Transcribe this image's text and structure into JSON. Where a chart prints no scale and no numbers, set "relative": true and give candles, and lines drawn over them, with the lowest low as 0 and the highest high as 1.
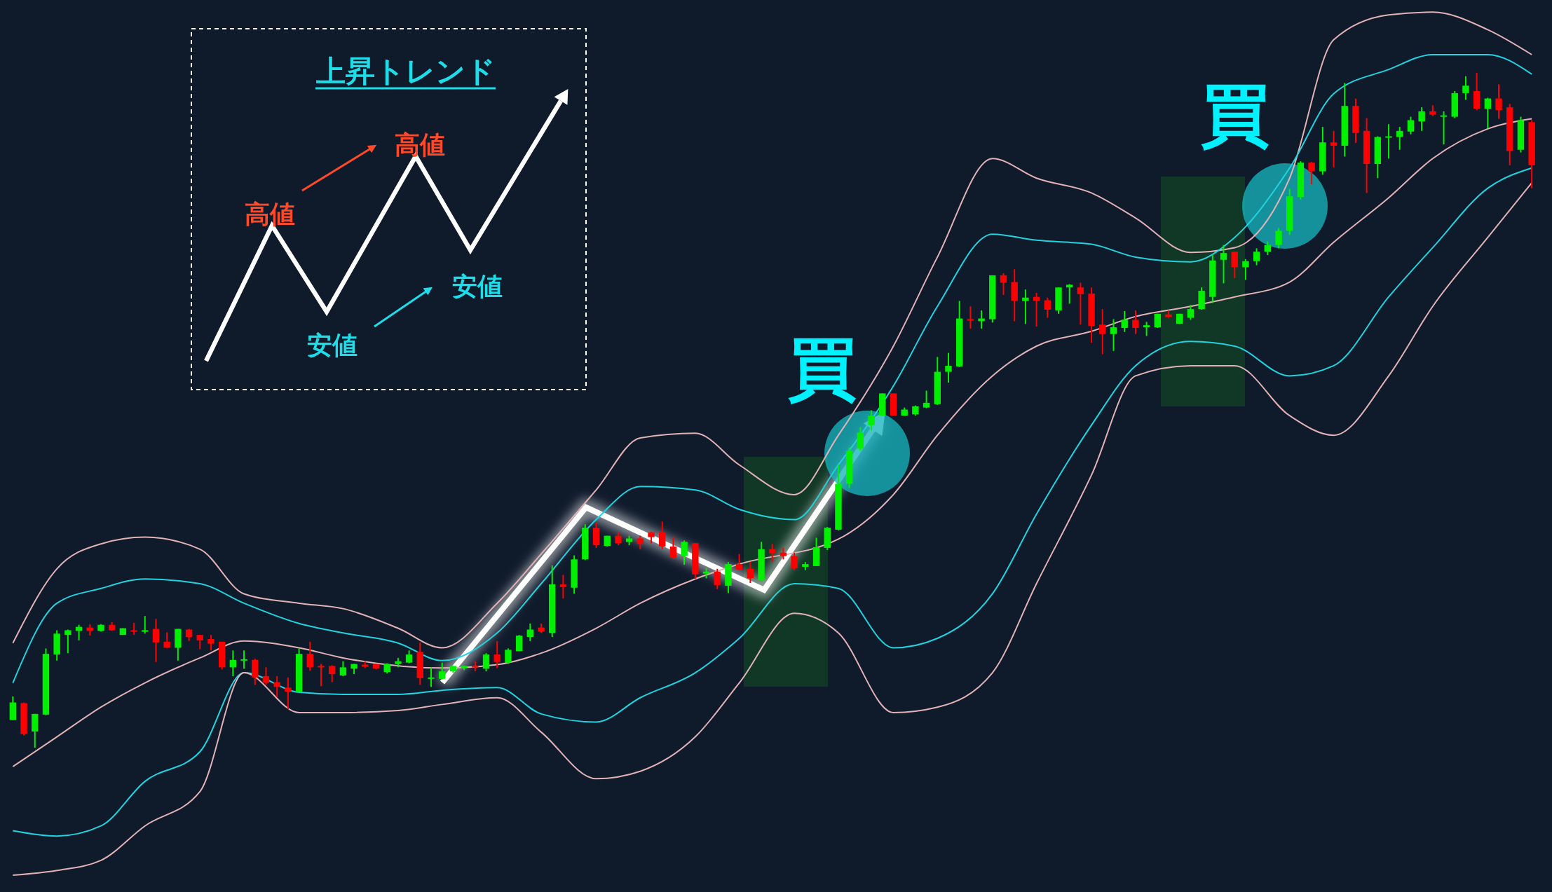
{
  "chart_data": {
    "type": "candlestick",
    "relative": true,
    "categories": [
      null,
      null,
      null,
      null,
      null,
      null,
      null,
      null,
      null,
      null,
      null,
      null,
      null,
      null,
      null,
      null,
      null,
      null,
      null,
      null,
      null,
      null,
      null,
      null,
      null,
      null,
      null,
      null,
      null,
      null,
      null,
      null,
      null,
      null,
      null,
      null,
      null,
      null,
      null,
      null,
      null,
      null,
      null,
      null,
      null,
      null,
      null,
      null,
      null,
      null,
      null,
      null,
      null,
      null,
      null,
      null,
      null,
      null,
      null,
      null,
      null,
      null,
      null,
      null,
      null,
      null,
      null,
      null,
      null,
      null,
      null,
      null,
      null,
      null,
      null,
      null,
      null,
      null,
      null,
      null,
      null,
      null,
      null,
      null,
      null,
      null,
      null,
      null,
      null,
      null,
      null,
      null,
      null,
      null,
      null,
      null,
      null,
      null,
      null,
      null,
      null,
      null,
      null,
      null,
      null,
      null,
      null,
      null,
      null,
      null,
      null,
      null,
      null,
      null,
      null,
      null,
      null,
      null,
      null,
      null,
      null,
      null,
      null,
      null,
      null,
      null,
      null,
      null,
      null,
      null,
      null,
      null,
      null,
      null,
      null,
      null,
      null,
      null,
      null
    ],
    "ohlc": [
      [
        0.041,
        0.076,
        0.041,
        0.067
      ],
      [
        0.066,
        0.067,
        0.018,
        0.02
      ],
      [
        0.024,
        0.05,
        0.0,
        0.05
      ],
      [
        0.049,
        0.147,
        0.048,
        0.139
      ],
      [
        0.138,
        0.174,
        0.129,
        0.169
      ],
      [
        0.167,
        0.175,
        0.14,
        0.174
      ],
      [
        0.173,
        0.182,
        0.159,
        0.179
      ],
      [
        0.178,
        0.183,
        0.166,
        0.173
      ],
      [
        0.173,
        0.183,
        0.172,
        0.182
      ],
      [
        0.182,
        0.186,
        0.173,
        0.174
      ],
      [
        0.167,
        0.177,
        0.167,
        0.177
      ],
      [
        0.174,
        0.185,
        0.167,
        0.172
      ],
      [
        0.172,
        0.195,
        0.169,
        0.174
      ],
      [
        0.176,
        0.191,
        0.127,
        0.156
      ],
      [
        0.157,
        0.171,
        0.148,
        0.148
      ],
      [
        0.148,
        0.176,
        0.129,
        0.176
      ],
      [
        0.175,
        0.176,
        0.158,
        0.164
      ],
      [
        0.167,
        0.167,
        0.146,
        0.159
      ],
      [
        0.161,
        0.167,
        0.144,
        0.154
      ],
      [
        0.157,
        0.157,
        0.116,
        0.119
      ],
      [
        0.119,
        0.144,
        0.106,
        0.13
      ],
      [
        0.13,
        0.144,
        0.117,
        0.131
      ],
      [
        0.13,
        0.132,
        0.093,
        0.104
      ],
      [
        0.106,
        0.119,
        0.093,
        0.096
      ],
      [
        0.097,
        0.106,
        0.075,
        0.09
      ],
      [
        0.089,
        0.104,
        0.057,
        0.083
      ],
      [
        0.082,
        0.147,
        0.082,
        0.139
      ],
      [
        0.139,
        0.157,
        0.114,
        0.119
      ],
      [
        0.121,
        0.124,
        0.091,
        0.12
      ],
      [
        0.121,
        0.122,
        0.097,
        0.109
      ],
      [
        0.107,
        0.128,
        0.106,
        0.119
      ],
      [
        0.117,
        0.124,
        0.109,
        0.124
      ],
      [
        0.123,
        0.128,
        0.118,
        0.12
      ],
      [
        0.124,
        0.124,
        0.116,
        0.117
      ],
      [
        0.112,
        0.125,
        0.11,
        0.124
      ],
      [
        0.124,
        0.133,
        0.119,
        0.128
      ],
      [
        0.126,
        0.144,
        0.125,
        0.138
      ],
      [
        0.142,
        0.156,
        0.093,
        0.103
      ],
      [
        0.102,
        0.119,
        0.09,
        0.104
      ],
      [
        0.102,
        0.126,
        0.101,
        0.113
      ],
      [
        0.113,
        0.121,
        0.111,
        0.121
      ],
      [
        0.118,
        0.121,
        0.115,
        0.121
      ],
      [
        0.121,
        0.128,
        0.113,
        0.119
      ],
      [
        0.117,
        0.14,
        0.113,
        0.138
      ],
      [
        0.138,
        0.158,
        0.118,
        0.127
      ],
      [
        0.126,
        0.147,
        0.124,
        0.145
      ],
      [
        0.143,
        0.167,
        0.143,
        0.166
      ],
      [
        0.164,
        0.184,
        0.158,
        0.175
      ],
      [
        0.178,
        0.184,
        0.17,
        0.172
      ],
      [
        0.17,
        0.27,
        0.164,
        0.242
      ],
      [
        0.242,
        0.256,
        0.221,
        0.238
      ],
      [
        0.237,
        0.285,
        0.228,
        0.279
      ],
      [
        0.279,
        0.331,
        0.278,
        0.326
      ],
      [
        0.326,
        0.334,
        0.296,
        0.3
      ],
      [
        0.299,
        0.314,
        0.298,
        0.314
      ],
      [
        0.314,
        0.319,
        0.3,
        0.303
      ],
      [
        0.305,
        0.314,
        0.3,
        0.31
      ],
      [
        0.31,
        0.314,
        0.294,
        0.302
      ],
      [
        0.319,
        0.32,
        0.303,
        0.312
      ],
      [
        0.319,
        0.335,
        0.294,
        0.298
      ],
      [
        0.298,
        0.312,
        0.28,
        0.282
      ],
      [
        0.284,
        0.307,
        0.271,
        0.305
      ],
      [
        0.303,
        0.303,
        0.25,
        0.257
      ],
      [
        0.258,
        0.266,
        0.251,
        0.261
      ],
      [
        0.261,
        0.265,
        0.235,
        0.241
      ],
      [
        0.24,
        0.275,
        0.229,
        0.272
      ],
      [
        0.272,
        0.287,
        0.263,
        0.264
      ],
      [
        0.265,
        0.275,
        0.244,
        0.251
      ],
      [
        0.248,
        0.305,
        0.247,
        0.294
      ],
      [
        0.294,
        0.302,
        0.275,
        0.288
      ],
      [
        0.289,
        0.296,
        0.279,
        0.284
      ],
      [
        0.284,
        0.289,
        0.263,
        0.266
      ],
      [
        0.268,
        0.275,
        0.263,
        0.272
      ],
      [
        0.269,
        0.311,
        0.269,
        0.297
      ],
      [
        0.296,
        0.327,
        0.293,
        0.326
      ],
      [
        0.323,
        0.419,
        0.322,
        0.391
      ],
      [
        0.391,
        0.445,
        0.385,
        0.44
      ],
      [
        0.443,
        0.475,
        0.44,
        0.467
      ],
      [
        0.478,
        0.5,
        0.47,
        0.492
      ],
      [
        0.492,
        0.525,
        0.492,
        0.525
      ],
      [
        0.525,
        0.525,
        0.492,
        0.492
      ],
      [
        0.492,
        0.504,
        0.492,
        0.501
      ],
      [
        0.494,
        0.507,
        0.492,
        0.506
      ],
      [
        0.504,
        0.529,
        0.503,
        0.511
      ],
      [
        0.509,
        0.579,
        0.508,
        0.557
      ],
      [
        0.557,
        0.585,
        0.541,
        0.566
      ],
      [
        0.565,
        0.662,
        0.564,
        0.636
      ],
      [
        0.635,
        0.654,
        0.621,
        0.634
      ],
      [
        0.632,
        0.648,
        0.621,
        0.636
      ],
      [
        0.635,
        0.7,
        0.63,
        0.7
      ],
      [
        0.7,
        0.703,
        0.671,
        0.689
      ],
      [
        0.69,
        0.709,
        0.632,
        0.662
      ],
      [
        0.662,
        0.679,
        0.628,
        0.667
      ],
      [
        0.668,
        0.674,
        0.624,
        0.662
      ],
      [
        0.663,
        0.667,
        0.637,
        0.649
      ],
      [
        0.648,
        0.682,
        0.643,
        0.682
      ],
      [
        0.682,
        0.687,
        0.658,
        0.686
      ],
      [
        0.682,
        0.689,
        0.627,
        0.672
      ],
      [
        0.673,
        0.682,
        0.6,
        0.625
      ],
      [
        0.627,
        0.65,
        0.583,
        0.613
      ],
      [
        0.613,
        0.635,
        0.588,
        0.623
      ],
      [
        0.622,
        0.647,
        0.616,
        0.634
      ],
      [
        0.634,
        0.648,
        0.613,
        0.622
      ],
      [
        0.623,
        0.631,
        0.61,
        0.626
      ],
      [
        0.623,
        0.643,
        0.622,
        0.643
      ],
      [
        0.642,
        0.648,
        0.637,
        0.638
      ],
      [
        0.628,
        0.643,
        0.628,
        0.643
      ],
      [
        0.637,
        0.656,
        0.634,
        0.65
      ],
      [
        0.65,
        0.682,
        0.649,
        0.677
      ],
      [
        0.668,
        0.731,
        0.659,
        0.722
      ],
      [
        0.723,
        0.745,
        0.688,
        0.733
      ],
      [
        0.735,
        0.735,
        0.696,
        0.712
      ],
      [
        0.712,
        0.724,
        0.693,
        0.721
      ],
      [
        0.721,
        0.74,
        0.715,
        0.735
      ],
      [
        0.735,
        0.75,
        0.73,
        0.745
      ],
      [
        0.745,
        0.77,
        0.74,
        0.766
      ],
      [
        0.766,
        0.828,
        0.76,
        0.817
      ],
      [
        0.816,
        0.869,
        0.812,
        0.867
      ],
      [
        0.867,
        0.868,
        0.835,
        0.854
      ],
      [
        0.854,
        0.92,
        0.849,
        0.897
      ],
      [
        0.897,
        0.914,
        0.86,
        0.892
      ],
      [
        0.892,
        0.985,
        0.876,
        0.951
      ],
      [
        0.951,
        0.962,
        0.896,
        0.911
      ],
      [
        0.914,
        0.933,
        0.822,
        0.865
      ],
      [
        0.865,
        0.906,
        0.844,
        0.905
      ],
      [
        0.905,
        0.924,
        0.873,
        0.906
      ],
      [
        0.905,
        0.92,
        0.886,
        0.914
      ],
      [
        0.913,
        0.935,
        0.909,
        0.93
      ],
      [
        0.928,
        0.949,
        0.914,
        0.943
      ],
      [
        0.943,
        0.952,
        0.936,
        0.938
      ],
      [
        0.936,
        0.943,
        0.894,
        0.937
      ],
      [
        0.935,
        0.973,
        0.933,
        0.97
      ],
      [
        0.97,
        0.995,
        0.96,
        0.981
      ],
      [
        0.973,
        1.0,
        0.945,
        0.947
      ],
      [
        0.947,
        0.963,
        0.918,
        0.962
      ],
      [
        0.962,
        0.983,
        0.932,
        0.945
      ],
      [
        0.949,
        0.954,
        0.863,
        0.884
      ],
      [
        0.886,
        0.935,
        0.882,
        0.93
      ],
      [
        0.927,
        0.93,
        0.829,
        0.863
      ]
    ],
    "series": [
      {
        "type": "line",
        "color": "#e2b3b6",
        "values": [
          0.155,
          null,
          null,
          null,
          0.265,
          null,
          null,
          null,
          0.302,
          null,
          null,
          null,
          0.312,
          null,
          null,
          null,
          null,
          0.294,
          null,
          null,
          null,
          0.228,
          null,
          null,
          null,
          null,
          0.214,
          null,
          null,
          null,
          0.206,
          null,
          null,
          null,
          null,
          0.177,
          null,
          null,
          null,
          0.148,
          null,
          null,
          null,
          null,
          0.214,
          null,
          null,
          null,
          0.287,
          null,
          null,
          null,
          null,
          0.382,
          null,
          null,
          null,
          0.459,
          null,
          null,
          null,
          null,
          0.466,
          null,
          null,
          null,
          0.419,
          null,
          null,
          null,
          null,
          0.375,
          null,
          null,
          null,
          0.463,
          null,
          null,
          null,
          null,
          0.595,
          null,
          null,
          null,
          0.727,
          null,
          null,
          null,
          null,
          0.873,
          null,
          null,
          null,
          0.844,
          null,
          null,
          null,
          null,
          0.822,
          null,
          null,
          null,
          0.785,
          null,
          null,
          null,
          null,
          0.734,
          null,
          null,
          null,
          0.741,
          null,
          null,
          null,
          null,
          0.844,
          null,
          null,
          null,
          1.049,
          null,
          null,
          null,
          null,
          1.086,
          null,
          null,
          null,
          1.09,
          null,
          null,
          null,
          null,
          1.064,
          null,
          null,
          null,
          1.027
        ]
      },
      {
        "type": "line",
        "color": "#22d3df",
        "values": [
          0.096,
          null,
          null,
          null,
          0.214,
          null,
          null,
          null,
          0.236,
          null,
          null,
          null,
          0.25,
          null,
          null,
          null,
          null,
          0.243,
          null,
          null,
          null,
          0.214,
          null,
          null,
          null,
          null,
          0.184,
          null,
          null,
          null,
          0.17,
          null,
          null,
          null,
          null,
          0.155,
          null,
          null,
          null,
          0.129,
          null,
          null,
          null,
          null,
          0.17,
          null,
          null,
          null,
          0.243,
          null,
          null,
          null,
          null,
          0.338,
          null,
          null,
          null,
          0.387,
          null,
          null,
          null,
          null,
          0.382,
          null,
          null,
          null,
          0.353,
          null,
          null,
          null,
          null,
          0.338,
          null,
          null,
          null,
          0.419,
          null,
          null,
          null,
          null,
          0.536,
          null,
          null,
          null,
          0.654,
          null,
          null,
          null,
          null,
          0.761,
          null,
          null,
          null,
          0.752,
          null,
          null,
          null,
          null,
          0.746,
          null,
          null,
          null,
          0.727,
          null,
          null,
          null,
          null,
          0.72,
          null,
          null,
          null,
          0.756,
          null,
          null,
          null,
          null,
          0.859,
          null,
          null,
          null,
          0.969,
          null,
          null,
          null,
          null,
          1.005,
          null,
          null,
          null,
          1.027,
          null,
          null,
          null,
          null,
          1.027,
          null,
          null,
          null,
          0.998
        ]
      },
      {
        "type": "line",
        "color": "#e2b3b6",
        "values": [
          -0.028,
          null,
          null,
          null,
          0.016,
          null,
          null,
          null,
          0.06,
          null,
          null,
          null,
          0.096,
          null,
          null,
          null,
          null,
          0.133,
          null,
          null,
          null,
          0.158,
          null,
          null,
          null,
          null,
          0.148,
          null,
          null,
          null,
          0.133,
          null,
          null,
          null,
          null,
          null,
          null,
          null,
          null,
          0.118,
          null,
          null,
          null,
          null,
          0.123,
          null,
          null,
          null,
          0.14,
          null,
          null,
          null,
          null,
          0.177,
          null,
          null,
          null,
          0.214,
          null,
          null,
          null,
          null,
          0.25,
          null,
          null,
          null,
          0.272,
          null,
          null,
          null,
          null,
          null,
          null,
          null,
          null,
          0.309,
          null,
          null,
          null,
          null,
          0.375,
          null,
          null,
          null,
          0.463,
          null,
          null,
          null,
          null,
          0.551,
          null,
          null,
          null,
          0.595,
          null,
          null,
          null,
          null,
          0.617,
          null,
          null,
          null,
          0.639,
          null,
          null,
          null,
          null,
          0.654,
          null,
          null,
          null,
          0.668,
          null,
          null,
          null,
          null,
          0.69,
          null,
          null,
          null,
          0.749,
          null,
          null,
          null,
          null,
          0.815,
          null,
          null,
          null,
          0.873,
          null,
          null,
          null,
          null,
          0.917,
          null,
          null,
          null,
          0.932
        ]
      },
      {
        "type": "line",
        "color": "#22d3df",
        "values": [
          -0.123,
          null,
          null,
          null,
          -0.131,
          null,
          null,
          null,
          -0.116,
          null,
          null,
          null,
          -0.05,
          null,
          null,
          null,
          null,
          -0.006,
          null,
          null,
          null,
          0.111,
          null,
          null,
          null,
          null,
          0.082,
          null,
          null,
          null,
          0.079,
          null,
          null,
          null,
          null,
          0.079,
          null,
          null,
          null,
          0.085,
          null,
          null,
          null,
          null,
          0.089,
          null,
          null,
          null,
          0.05,
          null,
          null,
          null,
          null,
          0.038,
          null,
          null,
          null,
          0.074,
          null,
          null,
          null,
          null,
          0.111,
          null,
          null,
          null,
          0.162,
          null,
          null,
          null,
          null,
          0.243,
          null,
          null,
          null,
          0.236,
          null,
          null,
          null,
          null,
          0.148,
          null,
          null,
          null,
          0.162,
          null,
          null,
          null,
          null,
          0.228,
          null,
          null,
          null,
          0.346,
          null,
          null,
          null,
          null,
          0.478,
          null,
          null,
          null,
          0.566,
          null,
          null,
          null,
          null,
          0.602,
          null,
          null,
          null,
          0.595,
          null,
          null,
          null,
          null,
          0.551,
          null,
          null,
          null,
          0.566,
          null,
          null,
          null,
          null,
          0.668,
          null,
          null,
          null,
          0.741,
          null,
          null,
          null,
          null,
          0.829,
          null,
          null,
          null,
          0.859
        ]
      },
      {
        "type": "line",
        "color": "#e2b3b6",
        "values": [
          -0.189,
          null,
          null,
          null,
          -0.182,
          null,
          null,
          null,
          -0.167,
          null,
          null,
          null,
          -0.116,
          null,
          null,
          null,
          null,
          -0.065,
          null,
          null,
          null,
          0.111,
          null,
          null,
          null,
          null,
          0.052,
          null,
          null,
          null,
          0.052,
          null,
          null,
          null,
          null,
          0.055,
          null,
          null,
          null,
          0.064,
          null,
          null,
          null,
          null,
          0.074,
          null,
          null,
          null,
          0.023,
          null,
          null,
          null,
          null,
          -0.046,
          null,
          null,
          null,
          -0.035,
          null,
          null,
          null,
          null,
          0.016,
          null,
          null,
          null,
          0.096,
          null,
          null,
          null,
          null,
          0.199,
          null,
          null,
          null,
          0.17,
          null,
          null,
          null,
          null,
          0.052,
          null,
          null,
          null,
          0.06,
          null,
          null,
          null,
          null,
          0.111,
          null,
          null,
          null,
          0.243,
          null,
          null,
          null,
          null,
          0.404,
          null,
          null,
          null,
          0.551,
          null,
          null,
          null,
          null,
          0.566,
          null,
          null,
          null,
          0.566,
          null,
          null,
          null,
          null,
          0.492,
          null,
          null,
          null,
          0.463,
          null,
          null,
          null,
          null,
          0.551,
          null,
          null,
          null,
          0.654,
          null,
          null,
          null,
          null,
          0.756,
          null,
          null,
          null,
          0.837
        ]
      }
    ],
    "annotations": [
      "上昇トレンド",
      "高値",
      "高値",
      "安値",
      "安値",
      "買",
      "買"
    ]
  }
}
